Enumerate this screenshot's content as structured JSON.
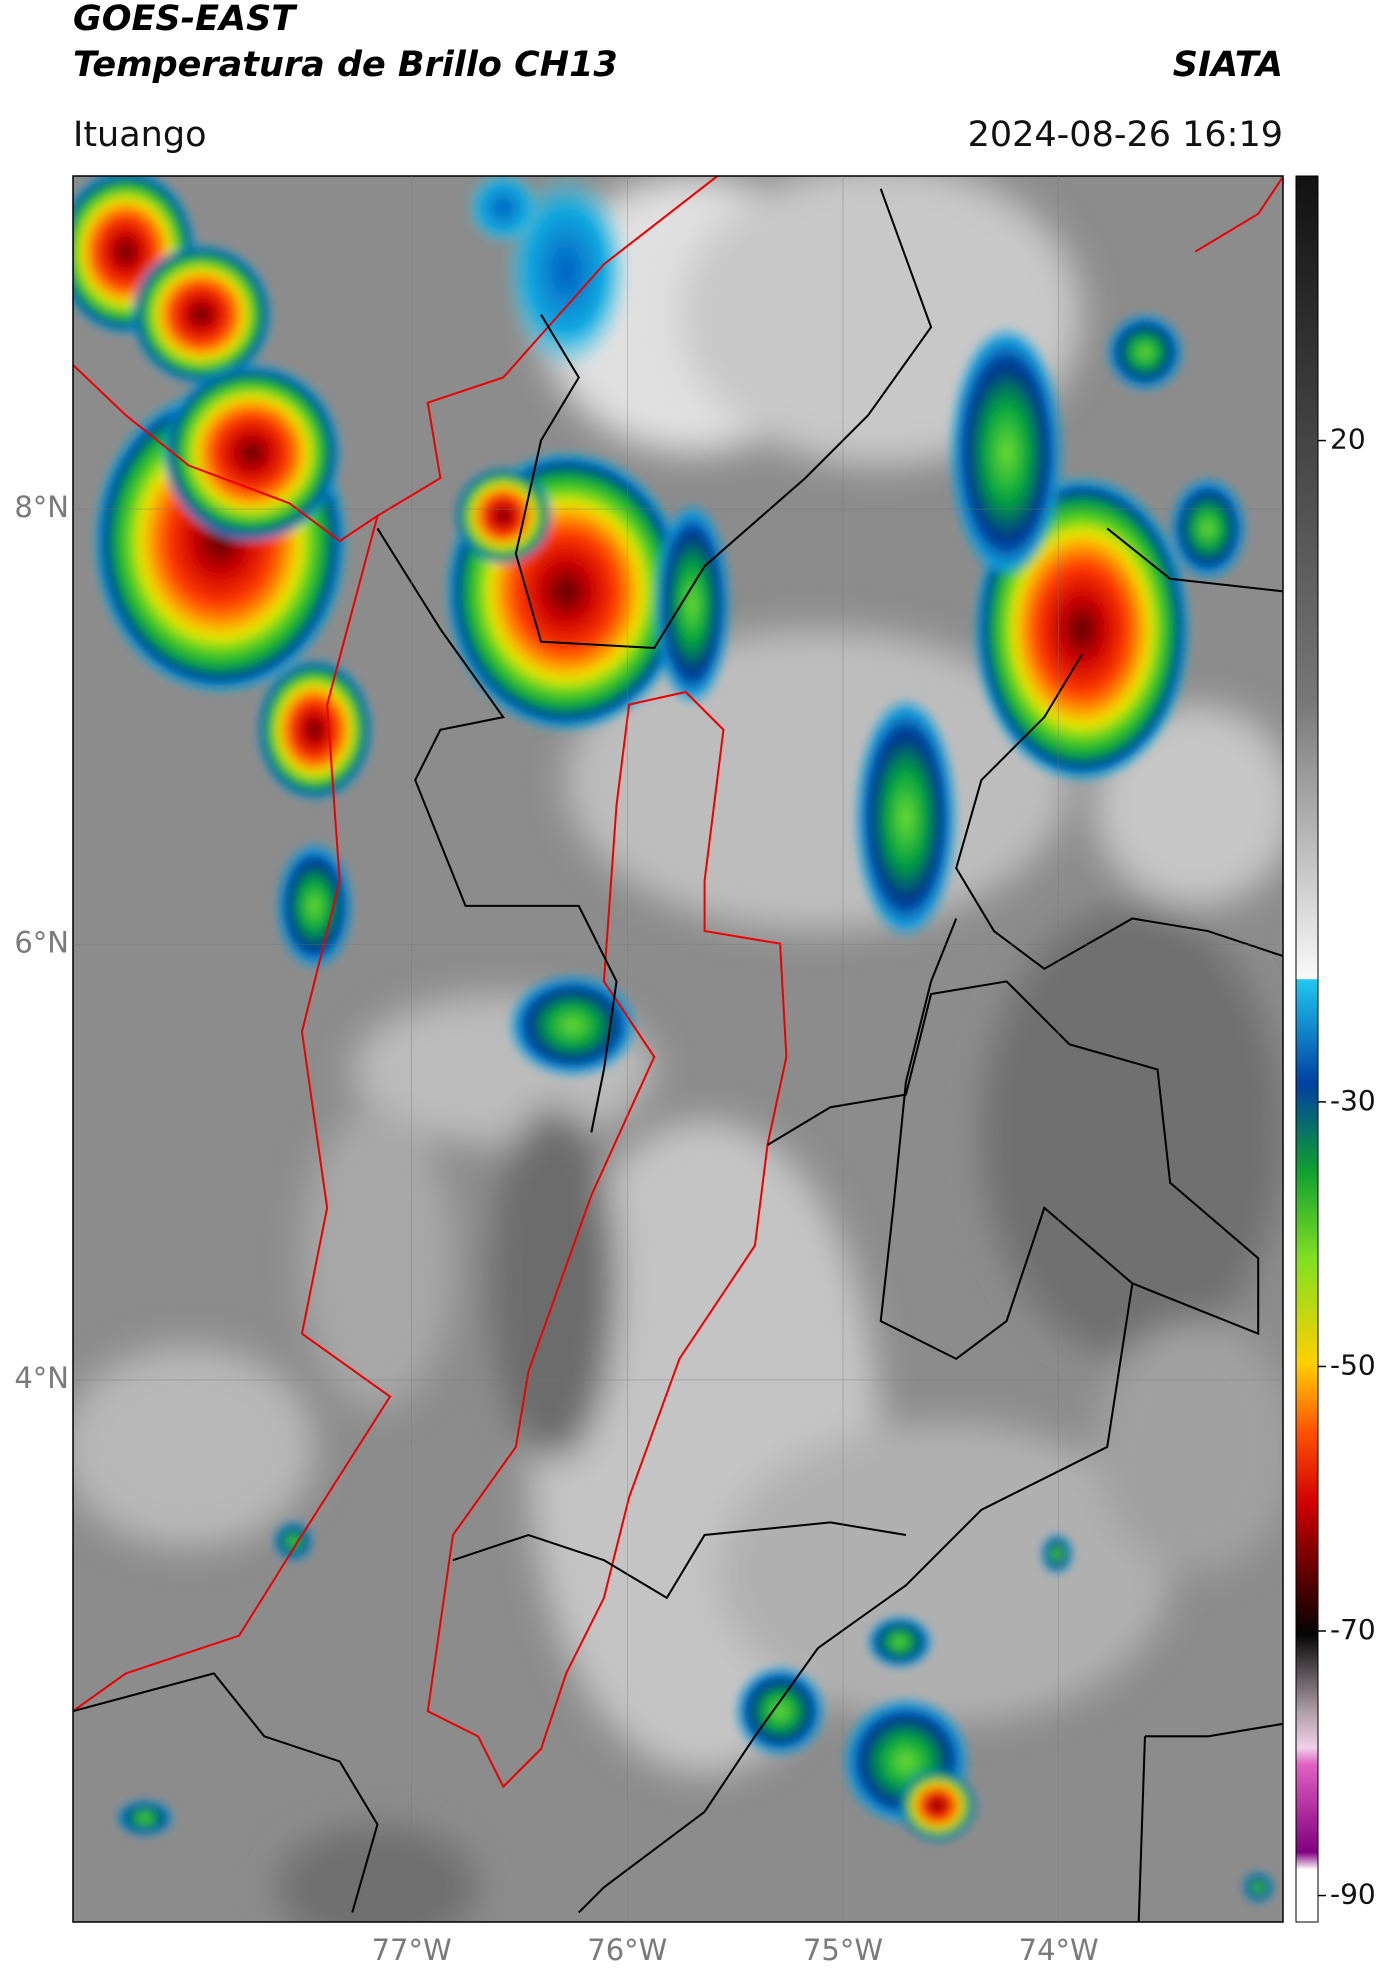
{
  "header": {
    "title_line1": "GOES-EAST",
    "title_line2": "Temperatura de Brillo CH13",
    "agency": "SIATA",
    "location": "Ituango",
    "datetime": "2024-08-26 16:19"
  },
  "chart_data": {
    "type": "map",
    "xlim": [
      -78.57,
      -72.96
    ],
    "ylim": [
      1.51,
      9.53
    ],
    "xticks": [
      {
        "value": -77,
        "label": "77°W"
      },
      {
        "value": -76,
        "label": "76°W"
      },
      {
        "value": -75,
        "label": "75°W"
      },
      {
        "value": -74,
        "label": "74°W"
      }
    ],
    "yticks": [
      {
        "value": 8,
        "label": "8°N"
      },
      {
        "value": 6,
        "label": "6°N"
      },
      {
        "value": 4,
        "label": "4°N"
      }
    ],
    "grid": true,
    "colorbar": {
      "lim": [
        -92,
        40
      ],
      "ticks": [
        20,
        -30,
        -50,
        -70,
        -90
      ]
    }
  }
}
